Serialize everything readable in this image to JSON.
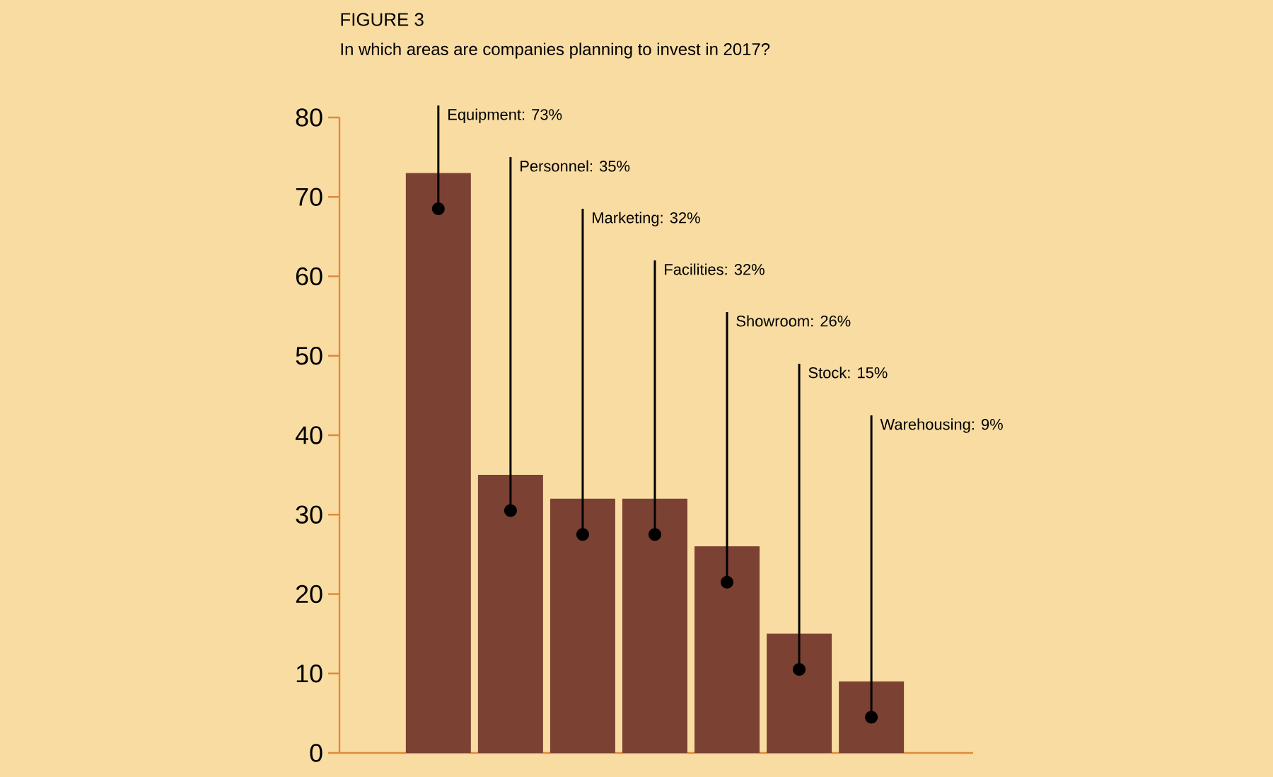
{
  "chart_data": {
    "type": "bar",
    "title": "FIGURE 3",
    "subtitle": "In which areas are companies planning to invest in 2017?",
    "categories": [
      null,
      null,
      null,
      null,
      null,
      null,
      null
    ],
    "values": [
      73,
      35,
      32,
      32,
      26,
      15,
      9
    ],
    "value_labels": [
      "Equipment: 73%",
      "Personnel: 35%",
      "Marketing: 32%",
      "Facilities: 32%",
      "Showroom: 26%",
      "Stock: 15%",
      "Warehousing: 9%"
    ],
    "color": "#7b4133",
    "ylim": [
      0,
      80
    ],
    "yticks": [
      0,
      10,
      20,
      30,
      40,
      50,
      60,
      70,
      80
    ]
  }
}
